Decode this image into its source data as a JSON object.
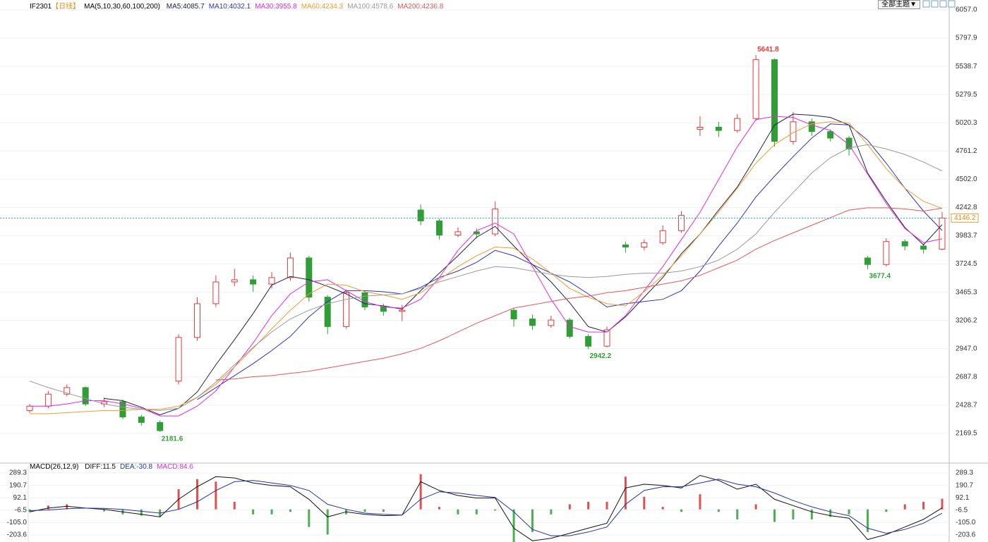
{
  "toolbar": {
    "theme_button": "全部主题▼"
  },
  "chart_data": [
    {
      "type": "candlestick",
      "symbol": "IF2301",
      "period": "【日线】",
      "ma_label": "MA(5,10,30,60,100,200)",
      "up_color": "#e83a3a",
      "down_color": "#2f9e35",
      "grid": true,
      "open": [
        2380,
        2420,
        2530,
        2590,
        2440,
        2460,
        2320,
        2270,
        2650,
        3050,
        3360,
        3560,
        3580,
        3540,
        3600,
        3780,
        3420,
        3150,
        3460,
        3330,
        3290,
        4220,
        4120,
        3990,
        4020,
        4000,
        3300,
        3220,
        3160,
        3210,
        3060,
        2970,
        3900,
        3880,
        3920,
        4030,
        4960,
        4980,
        4950,
        5060,
        5600,
        4850,
        5030,
        4940,
        4880,
        3780,
        3720,
        3930,
        3890,
        3860
      ],
      "high": [
        2440,
        2560,
        2620,
        2600,
        2500,
        2480,
        2340,
        2290,
        3080,
        3420,
        3620,
        3680,
        3620,
        3650,
        3830,
        3800,
        3440,
        3490,
        3480,
        3360,
        3350,
        4270,
        4140,
        4060,
        4050,
        4300,
        3320,
        3260,
        3250,
        3230,
        3080,
        3150,
        3930,
        3950,
        4080,
        4210,
        5080,
        5030,
        5100,
        5641.8,
        5610,
        5120,
        5060,
        4960,
        4900,
        3800,
        3960,
        3950,
        3910,
        4200
      ],
      "low": [
        2360,
        2400,
        2510,
        2420,
        2410,
        2300,
        2240,
        2181.6,
        2620,
        3020,
        3330,
        3520,
        3470,
        3500,
        3570,
        3380,
        3080,
        3130,
        3300,
        3250,
        3200,
        4080,
        3950,
        3970,
        3960,
        3980,
        3150,
        3120,
        3140,
        3040,
        2942.2,
        2960,
        3830,
        3850,
        3900,
        4010,
        4900,
        4890,
        4930,
        5040,
        4800,
        4820,
        4900,
        4850,
        4720,
        3677.4,
        3700,
        3850,
        3820,
        3850
      ],
      "close": [
        2420,
        2530,
        2590,
        2440,
        2460,
        2320,
        2270,
        2195,
        3050,
        3360,
        3560,
        3580,
        3540,
        3600,
        3780,
        3420,
        3150,
        3460,
        3330,
        3290,
        3300,
        4120,
        3990,
        4020,
        4000,
        4230,
        3220,
        3160,
        3210,
        3060,
        2970,
        3120,
        3880,
        3920,
        4030,
        4170,
        4980,
        4950,
        5060,
        5600,
        4850,
        5030,
        4940,
        4880,
        4780,
        3720,
        3930,
        3890,
        3860,
        4146.2
      ],
      "series": [
        {
          "name": "MA5:4085.7",
          "color": "#222244",
          "values": [
            null,
            null,
            null,
            null,
            2490,
            2470,
            2410,
            2340,
            2400,
            2550,
            2800,
            3030,
            3270,
            3530,
            3610,
            3580,
            3520,
            3450,
            3360,
            3340,
            3310,
            3480,
            3640,
            3800,
            3970,
            4070,
            3890,
            3720,
            3560,
            3370,
            3150,
            3100,
            3240,
            3420,
            3600,
            3820,
            4000,
            4220,
            4430,
            4710,
            5000,
            5100,
            5090,
            5070,
            5000,
            4560,
            4300,
            4060,
            3900,
            4085.7
          ]
        },
        {
          "name": "MA10:4032.1",
          "color": "#2e35b8",
          "values": [
            null,
            null,
            null,
            null,
            null,
            null,
            null,
            null,
            null,
            2480,
            2590,
            2700,
            2810,
            2930,
            3060,
            3240,
            3380,
            3480,
            3480,
            3470,
            3450,
            3510,
            3600,
            3660,
            3740,
            3850,
            3800,
            3720,
            3640,
            3560,
            3450,
            3330,
            3360,
            3380,
            3400,
            3480,
            3660,
            3890,
            4100,
            4340,
            4530,
            4710,
            4880,
            5010,
            5000,
            4860,
            4650,
            4420,
            4210,
            4032.1
          ]
        },
        {
          "name": "MA30:3955.8",
          "color": "#e02ee0",
          "values": [
            2420,
            2420,
            2440,
            2470,
            2470,
            2440,
            2400,
            2330,
            2330,
            2420,
            2560,
            2780,
            3000,
            3250,
            3450,
            3560,
            3580,
            3480,
            3380,
            3330,
            3320,
            3400,
            3600,
            3850,
            4030,
            4100,
            4000,
            3700,
            3400,
            3150,
            3100,
            3100,
            3250,
            3480,
            3700,
            3950,
            4200,
            4500,
            4800,
            5050,
            5080,
            5070,
            5000,
            4950,
            4820,
            4550,
            4280,
            4050,
            3920,
            3955.8
          ]
        },
        {
          "name": "MA60:4234.3",
          "color": "#f39c2b",
          "values": [
            2350,
            2350,
            2360,
            2370,
            2380,
            2380,
            2390,
            2390,
            2420,
            2500,
            2620,
            2780,
            2950,
            3130,
            3300,
            3450,
            3540,
            3530,
            3470,
            3440,
            3400,
            3460,
            3580,
            3700,
            3800,
            3880,
            3870,
            3770,
            3640,
            3500,
            3420,
            3360,
            3340,
            3470,
            3620,
            3800,
            4000,
            4200,
            4420,
            4650,
            4820,
            4930,
            5010,
            5030,
            5020,
            4820,
            4600,
            4420,
            4300,
            4234.3
          ]
        },
        {
          "name": "MA100:4578.6",
          "color": "#9a9a9a",
          "values": [
            2650,
            2590,
            2540,
            2490,
            2440,
            2410,
            2390,
            2380,
            2400,
            2500,
            2640,
            2800,
            2960,
            3100,
            3220,
            3300,
            3360,
            3400,
            3430,
            3440,
            3450,
            3500,
            3560,
            3610,
            3660,
            3700,
            3690,
            3660,
            3630,
            3610,
            3600,
            3610,
            3630,
            3640,
            3640,
            3660,
            3700,
            3760,
            3860,
            4000,
            4200,
            4380,
            4560,
            4700,
            4790,
            4820,
            4780,
            4730,
            4660,
            4578.6
          ]
        },
        {
          "name": "MA200:4236.8",
          "color": "#e25a5a",
          "values": [
            null,
            null,
            null,
            null,
            null,
            null,
            null,
            null,
            null,
            null,
            2660,
            2670,
            2690,
            2700,
            2720,
            2740,
            2770,
            2800,
            2830,
            2860,
            2900,
            2950,
            3020,
            3100,
            3180,
            3250,
            3320,
            3350,
            3380,
            3410,
            3430,
            3460,
            3480,
            3510,
            3540,
            3570,
            3620,
            3690,
            3760,
            3860,
            3940,
            4010,
            4080,
            4150,
            4220,
            4240,
            4240,
            4230,
            4210,
            4236.8
          ]
        }
      ],
      "ylim": [
        1910.3,
        6057.0
      ],
      "yticks": [
        {
          "value": 6057.0,
          "label": "6057.0"
        },
        5797.9,
        5538.7,
        5279.5,
        5020.3,
        4761.2,
        {
          "value": 4502.0,
          "label": "4502.0"
        },
        4242.8,
        3983.7,
        3724.5,
        3465.3,
        3206.2,
        {
          "value": 2947.0,
          "label": "2947.0"
        },
        2687.8,
        2428.7,
        2169.5
      ]
    },
    {
      "type": "macd",
      "title": "MACD(26,12,9)",
      "up_color": "#e05050",
      "down_color": "#4caf50",
      "series": [
        {
          "name": "DIFF:11.5",
          "color": "#111111",
          "values": [
            -20,
            10,
            25,
            10,
            0,
            -20,
            -40,
            -60,
            80,
            180,
            260,
            250,
            210,
            190,
            180,
            80,
            -60,
            -20,
            -40,
            -50,
            -45,
            220,
            150,
            110,
            90,
            90,
            -150,
            -250,
            -230,
            -190,
            -150,
            -110,
            170,
            200,
            190,
            170,
            270,
            230,
            160,
            200,
            80,
            30,
            -20,
            -50,
            -70,
            -240,
            -200,
            -140,
            -80,
            11.5
          ]
        },
        {
          "name": "DEA:-30.8",
          "color": "#2633a6",
          "values": [
            -10,
            -5,
            5,
            10,
            8,
            0,
            -15,
            -30,
            0,
            60,
            150,
            220,
            230,
            210,
            190,
            150,
            40,
            0,
            -30,
            -40,
            -45,
            80,
            140,
            130,
            110,
            95,
            -20,
            -160,
            -210,
            -210,
            -180,
            -140,
            40,
            150,
            180,
            180,
            210,
            240,
            200,
            180,
            130,
            70,
            20,
            -20,
            -50,
            -150,
            -190,
            -160,
            -110,
            -30.8
          ]
        },
        {
          "name": "MACD:84.6",
          "color": "#e02ee0",
          "values": [
            -20,
            30,
            40,
            0,
            -16,
            -40,
            -50,
            -60,
            160,
            240,
            220,
            60,
            -40,
            -40,
            -20,
            -140,
            -200,
            -40,
            -20,
            -20,
            0,
            280,
            20,
            -40,
            -40,
            -10,
            -260,
            -180,
            -40,
            40,
            60,
            60,
            260,
            100,
            20,
            -20,
            120,
            -20,
            -80,
            40,
            -100,
            -80,
            -80,
            -60,
            -40,
            -180,
            -20,
            40,
            60,
            84.6
          ]
        }
      ],
      "ylim": [
        -254,
        340
      ],
      "yticks": [
        289.3,
        190.7,
        92.1,
        -6.5,
        {
          "value": -105.0,
          "label": "-105.0"
        },
        -203.6
      ]
    }
  ]
}
